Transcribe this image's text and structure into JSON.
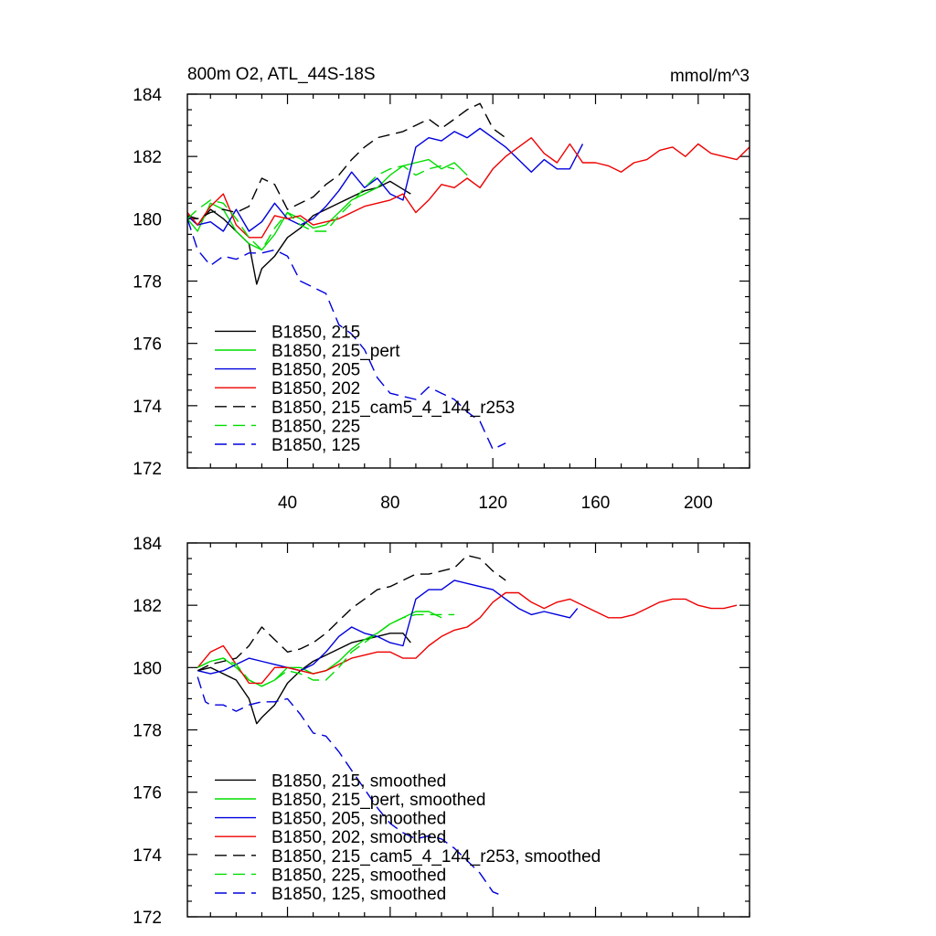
{
  "chart_data": [
    {
      "type": "line",
      "title": "800m O2, ATL_44S-18S",
      "units": "mmol/m^3",
      "xlabel": "",
      "ylabel": "",
      "xlim": [
        1,
        220
      ],
      "ylim": [
        172,
        184
      ],
      "xticks": [
        40,
        80,
        120,
        160,
        200
      ],
      "yticks": [
        172,
        174,
        176,
        178,
        180,
        182,
        184
      ],
      "legend_position": "bottom-left",
      "series": [
        {
          "name": "B1850, 215",
          "color": "#000000",
          "dash": "solid",
          "x": [
            1,
            5,
            10,
            15,
            20,
            25,
            28,
            30,
            35,
            40,
            45,
            50,
            55,
            60,
            65,
            70,
            75,
            80,
            84,
            88
          ],
          "y": [
            180.1,
            179.8,
            180.3,
            180.0,
            179.6,
            179.2,
            177.9,
            178.4,
            178.8,
            179.4,
            179.7,
            180.1,
            180.3,
            180.5,
            180.7,
            180.9,
            181.0,
            181.2,
            181.0,
            180.8
          ]
        },
        {
          "name": "B1850, 215_pert",
          "color": "#00dd00",
          "dash": "solid",
          "x": [
            1,
            5,
            10,
            15,
            20,
            25,
            30,
            35,
            40,
            45,
            50,
            55,
            60,
            65,
            70,
            75,
            80,
            85,
            90,
            95,
            100,
            105,
            110
          ],
          "y": [
            180.0,
            179.6,
            180.5,
            180.3,
            179.6,
            179.2,
            179.0,
            179.5,
            180.2,
            180.0,
            179.7,
            179.8,
            180.2,
            180.6,
            180.8,
            181.0,
            181.4,
            181.7,
            181.8,
            181.9,
            181.6,
            181.8,
            181.4
          ]
        },
        {
          "name": "B1850, 205",
          "color": "#0000dd",
          "dash": "solid",
          "x": [
            1,
            5,
            10,
            15,
            20,
            25,
            30,
            35,
            40,
            45,
            50,
            55,
            60,
            65,
            70,
            75,
            80,
            85,
            90,
            95,
            100,
            105,
            110,
            115,
            120,
            125,
            130,
            135,
            140,
            145,
            150,
            155
          ],
          "y": [
            180.1,
            179.8,
            179.9,
            179.6,
            180.3,
            179.6,
            179.9,
            180.5,
            180.0,
            179.8,
            180.0,
            180.4,
            180.9,
            181.5,
            181.0,
            181.3,
            180.8,
            180.6,
            182.3,
            182.6,
            182.5,
            182.8,
            182.6,
            182.9,
            182.6,
            182.3,
            181.9,
            181.5,
            181.9,
            181.6,
            181.6,
            182.4
          ]
        },
        {
          "name": "B1850, 202",
          "color": "#ee0000",
          "dash": "solid",
          "x": [
            1,
            5,
            10,
            15,
            20,
            25,
            30,
            35,
            40,
            45,
            50,
            55,
            60,
            65,
            70,
            75,
            80,
            85,
            90,
            95,
            100,
            105,
            110,
            115,
            120,
            125,
            130,
            135,
            140,
            145,
            150,
            155,
            160,
            165,
            170,
            175,
            180,
            185,
            190,
            195,
            200,
            205,
            210,
            215,
            220
          ],
          "y": [
            180.2,
            179.8,
            180.4,
            180.8,
            179.8,
            179.4,
            179.4,
            180.1,
            180.0,
            180.1,
            179.8,
            179.9,
            180.0,
            180.2,
            180.4,
            180.5,
            180.6,
            180.8,
            180.2,
            180.6,
            181.1,
            181.0,
            181.3,
            181.0,
            181.6,
            182.0,
            182.3,
            182.6,
            182.1,
            181.8,
            182.4,
            181.8,
            181.8,
            181.7,
            181.5,
            181.8,
            181.9,
            182.2,
            182.3,
            182.0,
            182.4,
            182.1,
            182.0,
            181.9,
            182.3
          ]
        },
        {
          "name": "B1850, 215_cam5_4_144_r253",
          "color": "#000000",
          "dash": "dashed",
          "x": [
            1,
            5,
            10,
            15,
            20,
            25,
            30,
            35,
            40,
            45,
            50,
            55,
            60,
            65,
            70,
            75,
            80,
            85,
            90,
            95,
            100,
            105,
            110,
            115,
            120,
            125
          ],
          "y": [
            180.1,
            180.0,
            180.2,
            180.3,
            180.2,
            180.4,
            181.3,
            181.1,
            180.3,
            180.5,
            180.7,
            181.1,
            181.4,
            181.9,
            182.3,
            182.6,
            182.7,
            182.8,
            183.0,
            183.2,
            182.9,
            183.2,
            183.5,
            183.7,
            182.9,
            182.6
          ]
        },
        {
          "name": "B1850, 225",
          "color": "#00dd00",
          "dash": "dashed",
          "x": [
            1,
            5,
            10,
            15,
            20,
            25,
            30,
            35,
            40,
            45,
            50,
            55,
            60,
            65,
            70,
            75,
            80,
            85,
            90,
            95,
            100,
            105
          ],
          "y": [
            180.0,
            180.3,
            180.6,
            180.5,
            180.0,
            179.4,
            179.0,
            179.7,
            180.2,
            179.8,
            179.6,
            179.6,
            180.1,
            180.5,
            181.0,
            181.4,
            181.6,
            181.7,
            181.4,
            181.6,
            181.7,
            181.6
          ]
        },
        {
          "name": "B1850, 125",
          "color": "#0000dd",
          "dash": "dashed",
          "x": [
            1,
            5,
            10,
            15,
            20,
            25,
            30,
            35,
            40,
            45,
            50,
            55,
            60,
            65,
            70,
            75,
            80,
            85,
            90,
            95,
            100,
            105,
            110,
            115,
            120,
            125
          ],
          "y": [
            180.0,
            179.0,
            178.5,
            178.8,
            178.7,
            178.9,
            178.9,
            179.0,
            178.8,
            178.0,
            177.8,
            177.6,
            176.6,
            176.3,
            175.8,
            174.9,
            174.4,
            174.3,
            174.2,
            174.6,
            174.4,
            174.2,
            173.8,
            173.5,
            172.6,
            172.8
          ]
        }
      ]
    },
    {
      "type": "line",
      "title": "",
      "xlabel": "",
      "ylabel": "",
      "xlim": [
        1,
        220
      ],
      "ylim": [
        172,
        184
      ],
      "xticks": [],
      "yticks": [
        172,
        174,
        176,
        178,
        180,
        182,
        184
      ],
      "legend_position": "bottom-left",
      "series": [
        {
          "name": "B1850, 215, smoothed",
          "color": "#000000",
          "dash": "solid",
          "x": [
            5,
            10,
            15,
            20,
            25,
            28,
            30,
            35,
            40,
            45,
            50,
            55,
            60,
            65,
            70,
            75,
            80,
            85,
            88
          ],
          "y": [
            179.9,
            180.0,
            179.8,
            179.6,
            179.0,
            178.2,
            178.4,
            178.8,
            179.5,
            179.9,
            180.2,
            180.4,
            180.6,
            180.8,
            180.9,
            181.0,
            181.1,
            181.1,
            180.8
          ]
        },
        {
          "name": "B1850, 215_pert, smoothed",
          "color": "#00dd00",
          "dash": "solid",
          "x": [
            5,
            10,
            15,
            20,
            25,
            30,
            35,
            40,
            45,
            50,
            55,
            60,
            65,
            70,
            75,
            80,
            85,
            90,
            95,
            100
          ],
          "y": [
            180.0,
            180.2,
            180.3,
            180.0,
            179.6,
            179.4,
            179.6,
            180.0,
            180.0,
            179.8,
            179.9,
            180.2,
            180.6,
            180.9,
            181.1,
            181.4,
            181.6,
            181.8,
            181.8,
            181.6
          ]
        },
        {
          "name": "B1850, 205, smoothed",
          "color": "#0000dd",
          "dash": "solid",
          "x": [
            5,
            10,
            15,
            20,
            25,
            30,
            35,
            40,
            45,
            50,
            55,
            60,
            65,
            70,
            75,
            80,
            85,
            90,
            95,
            100,
            105,
            110,
            115,
            120,
            125,
            130,
            135,
            140,
            145,
            150,
            153
          ],
          "y": [
            179.9,
            179.8,
            179.9,
            180.1,
            180.3,
            180.2,
            180.1,
            180.0,
            179.9,
            180.1,
            180.5,
            181.0,
            181.3,
            181.1,
            181.0,
            180.8,
            180.7,
            182.2,
            182.5,
            182.5,
            182.8,
            182.7,
            182.6,
            182.5,
            182.2,
            181.9,
            181.7,
            181.8,
            181.7,
            181.6,
            181.9
          ]
        },
        {
          "name": "B1850, 202, smoothed",
          "color": "#ee0000",
          "dash": "solid",
          "x": [
            5,
            10,
            15,
            20,
            25,
            30,
            35,
            40,
            45,
            50,
            55,
            60,
            65,
            70,
            75,
            80,
            85,
            90,
            95,
            100,
            105,
            110,
            115,
            120,
            125,
            130,
            135,
            140,
            145,
            150,
            155,
            160,
            165,
            170,
            175,
            180,
            185,
            190,
            195,
            200,
            205,
            210,
            215
          ],
          "y": [
            180.0,
            180.5,
            180.7,
            180.1,
            179.5,
            179.5,
            180.0,
            180.0,
            179.9,
            179.8,
            179.9,
            180.1,
            180.3,
            180.4,
            180.5,
            180.5,
            180.3,
            180.3,
            180.7,
            181.0,
            181.2,
            181.3,
            181.6,
            182.1,
            182.4,
            182.4,
            182.1,
            181.9,
            182.1,
            182.2,
            182.0,
            181.8,
            181.6,
            181.6,
            181.7,
            181.9,
            182.1,
            182.2,
            182.2,
            182.0,
            181.9,
            181.9,
            182.0
          ]
        },
        {
          "name": "B1850, 215_cam5_4_144_r253, smoothed",
          "color": "#000000",
          "dash": "dashed",
          "x": [
            5,
            10,
            15,
            20,
            25,
            30,
            35,
            40,
            45,
            50,
            55,
            60,
            65,
            70,
            75,
            80,
            85,
            90,
            95,
            100,
            105,
            110,
            115,
            120,
            125
          ],
          "y": [
            179.9,
            180.1,
            180.2,
            180.3,
            180.7,
            181.3,
            180.9,
            180.5,
            180.6,
            180.8,
            181.1,
            181.5,
            181.9,
            182.2,
            182.5,
            182.6,
            182.8,
            183.0,
            183.0,
            183.1,
            183.2,
            183.6,
            183.5,
            183.1,
            182.8
          ]
        },
        {
          "name": "B1850, 225, smoothed",
          "color": "#00dd00",
          "dash": "dashed",
          "x": [
            5,
            10,
            15,
            20,
            25,
            30,
            35,
            40,
            45,
            50,
            55,
            60,
            65,
            70,
            75,
            80,
            85,
            90,
            95,
            100,
            105
          ],
          "y": [
            180.0,
            180.2,
            180.3,
            180.1,
            179.6,
            179.4,
            179.6,
            179.9,
            179.8,
            179.6,
            179.6,
            180.0,
            180.5,
            180.8,
            181.1,
            181.4,
            181.6,
            181.7,
            181.7,
            181.7,
            181.7
          ]
        },
        {
          "name": "B1850, 125, smoothed",
          "color": "#0000dd",
          "dash": "dashed",
          "x": [
            5,
            8,
            10,
            15,
            20,
            25,
            30,
            35,
            40,
            45,
            50,
            55,
            60,
            65,
            70,
            75,
            80,
            85,
            90,
            95,
            100,
            105,
            110,
            115,
            120,
            123
          ],
          "y": [
            179.7,
            178.9,
            178.8,
            178.8,
            178.6,
            178.8,
            178.9,
            178.9,
            179.0,
            178.5,
            177.9,
            177.8,
            177.3,
            176.7,
            176.1,
            175.5,
            175.0,
            174.7,
            174.5,
            174.6,
            174.5,
            174.2,
            173.8,
            173.4,
            172.8,
            172.7
          ]
        }
      ]
    }
  ]
}
